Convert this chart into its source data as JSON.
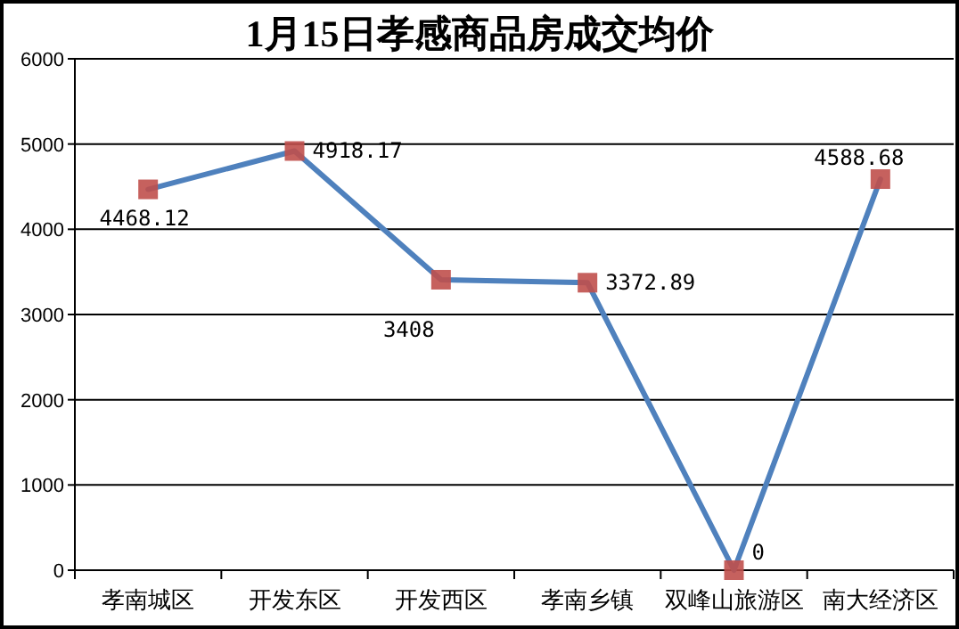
{
  "chart_data": {
    "type": "line",
    "title": "1月15日孝感商品房成交均价",
    "categories": [
      "孝南城区",
      "开发东区",
      "开发西区",
      "孝南乡镇",
      "双峰山旅游区",
      "南大经济区"
    ],
    "series": [
      {
        "color": "#4f81bd",
        "values": [
          4468.12,
          4918.17,
          3408,
          3372.89,
          0,
          4588.68
        ],
        "value_labels": [
          "4468.12",
          "4918.17",
          "3408",
          "3372.89",
          "0",
          "4588.68"
        ]
      }
    ],
    "ylim": [
      0,
      6000
    ],
    "yticks": [
      0,
      1000,
      2000,
      3000,
      4000,
      5000,
      6000
    ],
    "grid": "y",
    "marker": "square",
    "line_style": "solid"
  }
}
